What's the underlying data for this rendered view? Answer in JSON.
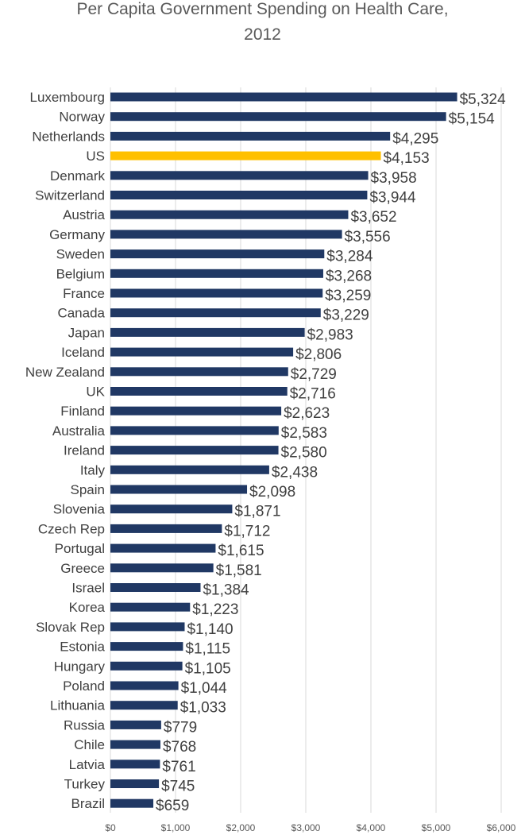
{
  "chart_data": {
    "type": "bar",
    "orientation": "horizontal",
    "title_lines": [
      "Per Capita Government Spending on Health Care,",
      "2012"
    ],
    "categories": [
      "Luxembourg",
      "Norway",
      "Netherlands",
      "US",
      "Denmark",
      "Switzerland",
      "Austria",
      "Germany",
      "Sweden",
      "Belgium",
      "France",
      "Canada",
      "Japan",
      "Iceland",
      "New Zealand",
      "UK",
      "Finland",
      "Australia",
      "Ireland",
      "Italy",
      "Spain",
      "Slovenia",
      "Czech Rep",
      "Portugal",
      "Greece",
      "Israel",
      "Korea",
      "Slovak Rep",
      "Estonia",
      "Hungary",
      "Poland",
      "Lithuania",
      "Russia",
      "Chile",
      "Latvia",
      "Turkey",
      "Brazil"
    ],
    "values": [
      5324,
      5154,
      4295,
      4153,
      3958,
      3944,
      3652,
      3556,
      3284,
      3268,
      3259,
      3229,
      2983,
      2806,
      2729,
      2716,
      2623,
      2583,
      2580,
      2438,
      2098,
      1871,
      1712,
      1615,
      1581,
      1384,
      1223,
      1140,
      1115,
      1105,
      1044,
      1033,
      779,
      768,
      761,
      745,
      659
    ],
    "data_labels": [
      "$5,324",
      "$5,154",
      "$4,295",
      "$4,153",
      "$3,958",
      "$3,944",
      "$3,652",
      "$3,556",
      "$3,284",
      "$3,268",
      "$3,259",
      "$3,229",
      "$2,983",
      "$2,806",
      "$2,729",
      "$2,716",
      "$2,623",
      "$2,583",
      "$2,580",
      "$2,438",
      "$2,098",
      "$1,871",
      "$1,712",
      "$1,615",
      "$1,581",
      "$1,384",
      "$1,223",
      "$1,140",
      "$1,115",
      "$1,105",
      "$1,044",
      "$1,033",
      "$779",
      "$768",
      "$761",
      "$745",
      "$659"
    ],
    "highlight_category": "US",
    "xlim": [
      0,
      6000
    ],
    "xticks": [
      0,
      1000,
      2000,
      3000,
      4000,
      5000,
      6000
    ],
    "xtick_labels": [
      "$0",
      "$1,000",
      "$2,000",
      "$3,000",
      "$4,000",
      "$5,000",
      "$6,000"
    ],
    "grid": true,
    "colors": {
      "bar": "#203864",
      "highlight": "#FFC000",
      "grid": "#d9d9d9",
      "label_text": "#404040",
      "tick_text": "#595959",
      "title_text": "#595959"
    }
  }
}
